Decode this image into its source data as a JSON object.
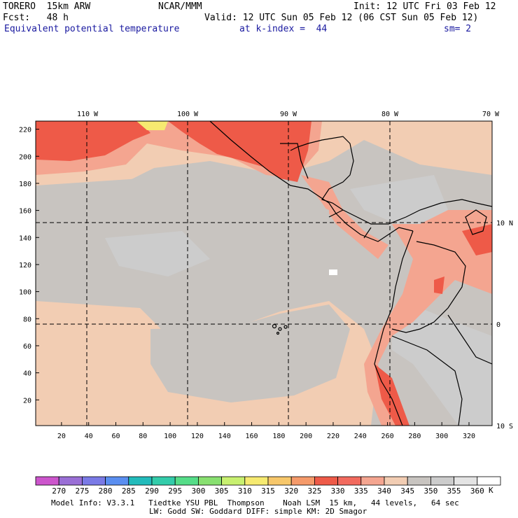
{
  "header": {
    "model": "TORERO  15km ARW",
    "org": "NCAR/MMM",
    "init": "Init: 12 UTC Fri 03 Feb 12",
    "fcst": "Fcst:   48 h",
    "valid": "Valid: 12 UTC Sun 05 Feb 12 (06 CST Sun 05 Feb 12)",
    "field": "Equivalent potential temperature",
    "level": "at k-index =  44",
    "smooth": "sm= 2"
  },
  "map": {
    "lon_labels": [
      "110 W",
      "100 W",
      "90 W",
      "80 W",
      "70 W"
    ],
    "lat_labels": [
      "10 N",
      "0",
      "10 S"
    ],
    "y_ticks": [
      "220",
      "200",
      "180",
      "160",
      "140",
      "120",
      "100",
      "80",
      "60",
      "40",
      "20"
    ],
    "x_ticks": [
      "20",
      "40",
      "60",
      "80",
      "100",
      "120",
      "140",
      "160",
      "180",
      "200",
      "220",
      "240",
      "260",
      "280",
      "300",
      "320"
    ]
  },
  "colorbar": {
    "labels": [
      "270",
      "275",
      "280",
      "285",
      "290",
      "295",
      "300",
      "305",
      "310",
      "315",
      "320",
      "325",
      "330",
      "335",
      "340",
      "345",
      "350",
      "355",
      "360"
    ],
    "unit": "K",
    "colors": [
      "#cc55cc",
      "#9a6fd6",
      "#7a7ae6",
      "#5a8ef0",
      "#22bbbb",
      "#33ccaa",
      "#55dd88",
      "#88e070",
      "#c8f070",
      "#f6ea70",
      "#f7c76a",
      "#f59a6a",
      "#ee5a48",
      "#f26a5e",
      "#f4a590",
      "#f2cdb3",
      "#c8c4c0",
      "#cccccc",
      "#e4e4e4",
      "#ffffff"
    ]
  },
  "footer": {
    "line1": "Model Info: V3.3.1   Tiedtke YSU PBL  Thompson    Noah LSM  15 km,   44 levels,   64 sec",
    "line2": "LW: Godd SW: Goddard DIFF: simple KM: 2D Smagor"
  }
}
